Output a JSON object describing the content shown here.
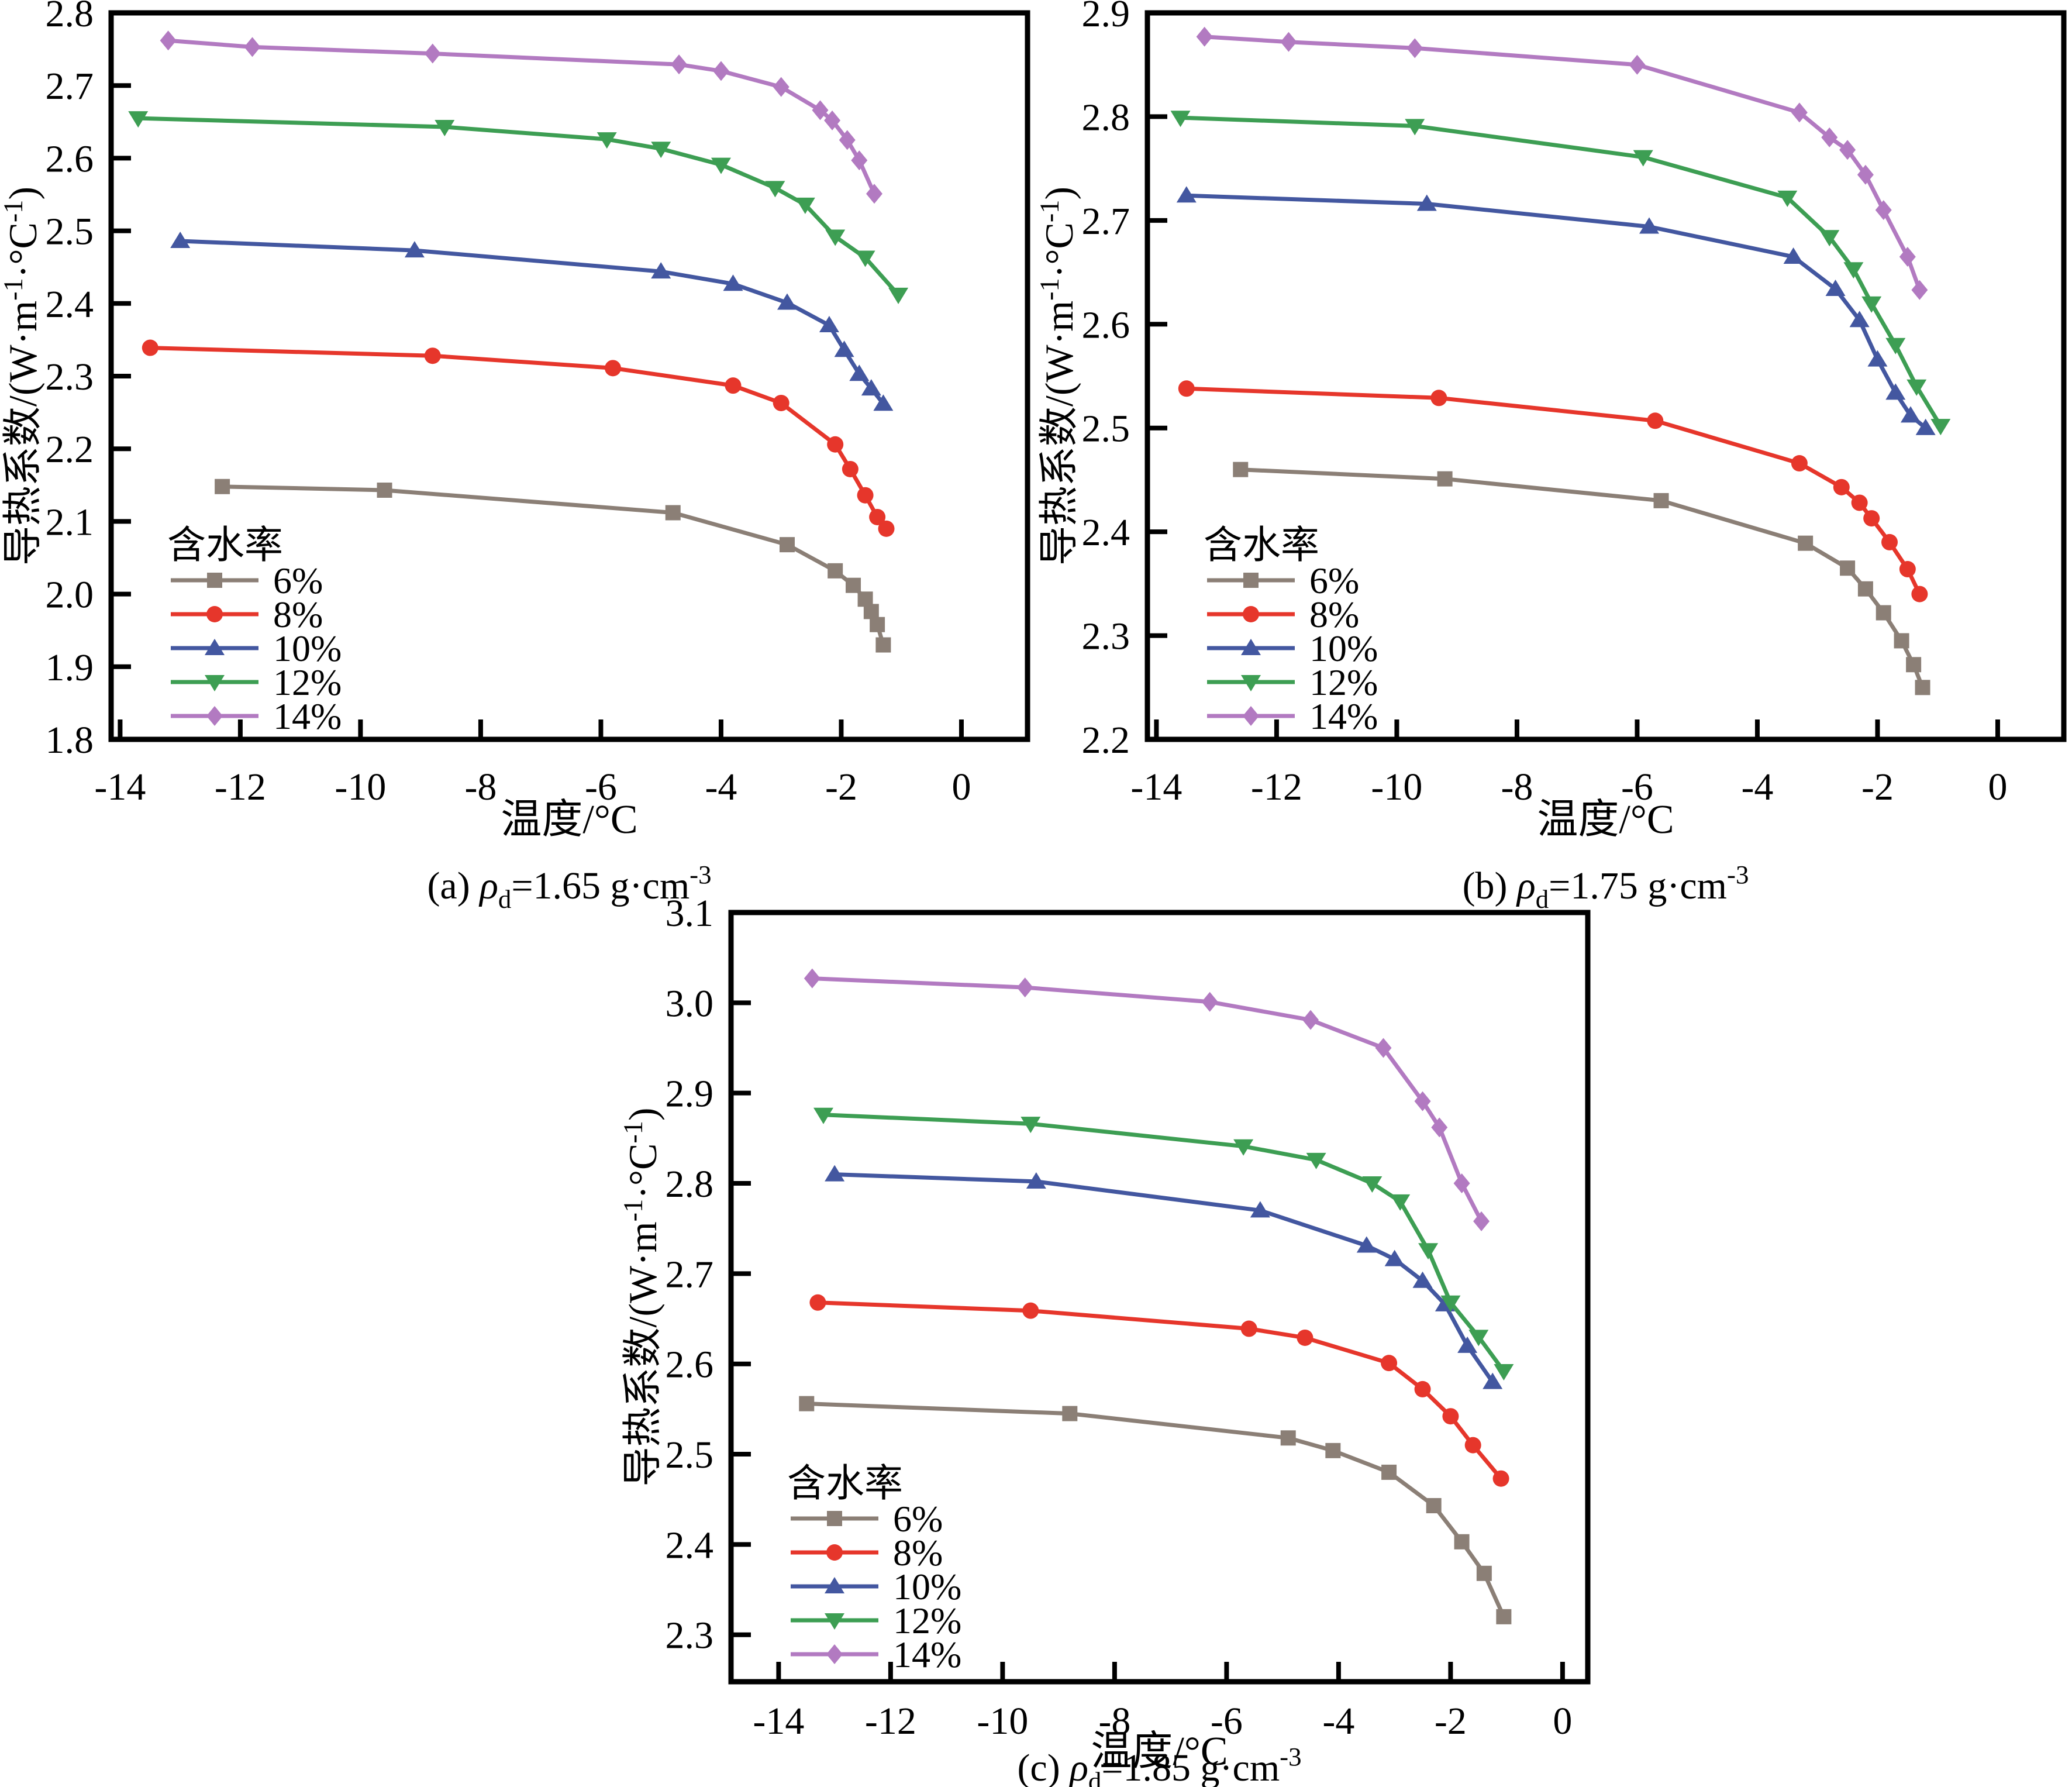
{
  "shared": {
    "xlabel": "温度/°C",
    "ylabel_plain": "导热系数/(W·m⁻¹·°C⁻¹)",
    "ylabel_parts": [
      {
        "t": "导热系数/(W·m"
      },
      {
        "t": "-1",
        "sup": true
      },
      {
        "t": "·°C"
      },
      {
        "t": "-1",
        "sup": true
      },
      {
        "t": ")"
      }
    ],
    "legend_title": "含水率",
    "axis_color": "#000000",
    "background": "#ffffff"
  },
  "chart_data": [
    {
      "id": "a",
      "type": "line",
      "caption_plain": "(a) ρd=1.65 g·cm⁻³",
      "caption": {
        "prefix": "(a) ",
        "symbol": "ρ",
        "sub": "d",
        "mid": "=1.65 g·cm",
        "sup": "-3"
      },
      "xlabel": "温度/°C",
      "ylabel": "导热系数/(W·m⁻¹·°C⁻¹)",
      "legend_title": "含水率",
      "xlim": [
        -14.15,
        1.1
      ],
      "ylim": [
        1.8,
        2.8
      ],
      "x_ticks": [
        -14,
        -12,
        -10,
        -8,
        -6,
        -4,
        -2,
        0
      ],
      "y_ticks": [
        "1.8",
        "1.9",
        "2.0",
        "2.1",
        "2.2",
        "2.3",
        "2.4",
        "2.5",
        "2.6",
        "2.7",
        "2.8"
      ],
      "grid": false,
      "legend_position": "lower-left",
      "series": [
        {
          "name": "6%",
          "color": "#8b7f76",
          "marker": "square",
          "points": [
            [
              -12.3,
              2.148
            ],
            [
              -9.6,
              2.143
            ],
            [
              -4.8,
              2.112
            ],
            [
              -2.9,
              2.068
            ],
            [
              -2.1,
              2.032
            ],
            [
              -1.8,
              2.012
            ],
            [
              -1.6,
              1.993
            ],
            [
              -1.5,
              1.976
            ],
            [
              -1.4,
              1.958
            ],
            [
              -1.3,
              1.93
            ]
          ]
        },
        {
          "name": "8%",
          "color": "#e6362b",
          "marker": "circle",
          "points": [
            [
              -13.5,
              2.339
            ],
            [
              -8.8,
              2.328
            ],
            [
              -5.8,
              2.311
            ],
            [
              -3.8,
              2.287
            ],
            [
              -3.0,
              2.263
            ],
            [
              -2.1,
              2.206
            ],
            [
              -1.85,
              2.172
            ],
            [
              -1.6,
              2.136
            ],
            [
              -1.4,
              2.106
            ],
            [
              -1.25,
              2.09
            ]
          ]
        },
        {
          "name": "10%",
          "color": "#4357a0",
          "marker": "triangle-up",
          "points": [
            [
              -13.0,
              2.486
            ],
            [
              -9.1,
              2.473
            ],
            [
              -5.0,
              2.444
            ],
            [
              -3.8,
              2.427
            ],
            [
              -2.9,
              2.401
            ],
            [
              -2.2,
              2.37
            ],
            [
              -1.95,
              2.336
            ],
            [
              -1.7,
              2.303
            ],
            [
              -1.5,
              2.283
            ],
            [
              -1.3,
              2.262
            ]
          ]
        },
        {
          "name": "12%",
          "color": "#3d9e53",
          "marker": "triangle-down",
          "points": [
            [
              -13.7,
              2.655
            ],
            [
              -8.6,
              2.643
            ],
            [
              -5.9,
              2.626
            ],
            [
              -5.0,
              2.613
            ],
            [
              -4.0,
              2.591
            ],
            [
              -3.1,
              2.559
            ],
            [
              -2.6,
              2.536
            ],
            [
              -2.1,
              2.492
            ],
            [
              -1.6,
              2.463
            ],
            [
              -1.05,
              2.412
            ]
          ]
        },
        {
          "name": "14%",
          "color": "#b27ac1",
          "marker": "diamond",
          "points": [
            [
              -13.2,
              2.762
            ],
            [
              -11.8,
              2.753
            ],
            [
              -8.8,
              2.744
            ],
            [
              -4.7,
              2.729
            ],
            [
              -4.0,
              2.72
            ],
            [
              -3.0,
              2.698
            ],
            [
              -2.35,
              2.666
            ],
            [
              -2.15,
              2.652
            ],
            [
              -1.9,
              2.625
            ],
            [
              -1.7,
              2.597
            ],
            [
              -1.45,
              2.551
            ]
          ]
        }
      ]
    },
    {
      "id": "b",
      "type": "line",
      "caption_plain": "(b) ρd=1.75 g·cm⁻³",
      "caption": {
        "prefix": "(b) ",
        "symbol": "ρ",
        "sub": "d",
        "mid": "=1.75 g·cm",
        "sup": "-3"
      },
      "xlabel": "温度/°C",
      "ylabel": "导热系数/(W·m⁻¹·°C⁻¹)",
      "legend_title": "含水率",
      "xlim": [
        -14.15,
        1.1
      ],
      "ylim": [
        2.2,
        2.9
      ],
      "x_ticks": [
        -14,
        -12,
        -10,
        -8,
        -6,
        -4,
        -2,
        0
      ],
      "y_ticks": [
        "2.2",
        "2.3",
        "2.4",
        "2.5",
        "2.6",
        "2.7",
        "2.8",
        "2.9"
      ],
      "grid": false,
      "legend_position": "lower-left",
      "series": [
        {
          "name": "6%",
          "color": "#8b7f76",
          "marker": "square",
          "points": [
            [
              -12.6,
              2.46
            ],
            [
              -9.2,
              2.451
            ],
            [
              -5.6,
              2.43
            ],
            [
              -3.2,
              2.389
            ],
            [
              -2.5,
              2.365
            ],
            [
              -2.2,
              2.345
            ],
            [
              -1.9,
              2.322
            ],
            [
              -1.6,
              2.295
            ],
            [
              -1.4,
              2.272
            ],
            [
              -1.25,
              2.25
            ]
          ]
        },
        {
          "name": "8%",
          "color": "#e6362b",
          "marker": "circle",
          "points": [
            [
              -13.5,
              2.538
            ],
            [
              -9.3,
              2.529
            ],
            [
              -5.7,
              2.507
            ],
            [
              -3.3,
              2.466
            ],
            [
              -2.6,
              2.443
            ],
            [
              -2.3,
              2.428
            ],
            [
              -2.1,
              2.413
            ],
            [
              -1.8,
              2.39
            ],
            [
              -1.5,
              2.364
            ],
            [
              -1.3,
              2.34
            ]
          ]
        },
        {
          "name": "10%",
          "color": "#4357a0",
          "marker": "triangle-up",
          "points": [
            [
              -13.5,
              2.724
            ],
            [
              -9.5,
              2.716
            ],
            [
              -5.8,
              2.694
            ],
            [
              -3.4,
              2.665
            ],
            [
              -2.7,
              2.634
            ],
            [
              -2.3,
              2.604
            ],
            [
              -2.0,
              2.566
            ],
            [
              -1.7,
              2.534
            ],
            [
              -1.45,
              2.512
            ],
            [
              -1.2,
              2.5
            ]
          ]
        },
        {
          "name": "12%",
          "color": "#3d9e53",
          "marker": "triangle-down",
          "points": [
            [
              -13.6,
              2.799
            ],
            [
              -9.7,
              2.791
            ],
            [
              -5.9,
              2.761
            ],
            [
              -3.5,
              2.722
            ],
            [
              -2.8,
              2.684
            ],
            [
              -2.4,
              2.653
            ],
            [
              -2.1,
              2.62
            ],
            [
              -1.7,
              2.58
            ],
            [
              -1.35,
              2.54
            ],
            [
              -0.95,
              2.502
            ]
          ]
        },
        {
          "name": "14%",
          "color": "#b27ac1",
          "marker": "diamond",
          "points": [
            [
              -13.2,
              2.877
            ],
            [
              -11.8,
              2.872
            ],
            [
              -9.7,
              2.866
            ],
            [
              -6.0,
              2.85
            ],
            [
              -3.3,
              2.804
            ],
            [
              -2.8,
              2.78
            ],
            [
              -2.5,
              2.768
            ],
            [
              -2.2,
              2.744
            ],
            [
              -1.9,
              2.71
            ],
            [
              -1.5,
              2.665
            ],
            [
              -1.3,
              2.633
            ]
          ]
        }
      ]
    },
    {
      "id": "c",
      "type": "line",
      "caption_plain": "(c) ρd=1.85 g·cm⁻³",
      "caption": {
        "prefix": "(c) ",
        "symbol": "ρ",
        "sub": "d",
        "mid": "=1.85 g·cm",
        "sup": "-3"
      },
      "xlabel": "温度/°C",
      "ylabel": "导热系数/(W·m⁻¹·°C⁻¹)",
      "legend_title": "含水率",
      "xlim": [
        -14.85,
        0.45
      ],
      "ylim": [
        2.248,
        3.1
      ],
      "x_ticks": [
        -14,
        -12,
        -10,
        -8,
        -6,
        -4,
        -2,
        0
      ],
      "y_ticks": [
        "2.3",
        "2.4",
        "2.5",
        "2.6",
        "2.7",
        "2.8",
        "2.9",
        "3.0",
        "3.1"
      ],
      "grid": false,
      "legend_position": "lower-left",
      "series": [
        {
          "name": "6%",
          "color": "#8b7f76",
          "marker": "square",
          "points": [
            [
              -13.5,
              2.556
            ],
            [
              -8.8,
              2.545
            ],
            [
              -4.9,
              2.518
            ],
            [
              -4.1,
              2.504
            ],
            [
              -3.1,
              2.48
            ],
            [
              -2.3,
              2.443
            ],
            [
              -1.8,
              2.403
            ],
            [
              -1.4,
              2.368
            ],
            [
              -1.05,
              2.32
            ]
          ]
        },
        {
          "name": "8%",
          "color": "#e6362b",
          "marker": "circle",
          "points": [
            [
              -13.3,
              2.668
            ],
            [
              -9.5,
              2.659
            ],
            [
              -5.6,
              2.639
            ],
            [
              -4.6,
              2.629
            ],
            [
              -3.1,
              2.601
            ],
            [
              -2.5,
              2.572
            ],
            [
              -2.0,
              2.542
            ],
            [
              -1.6,
              2.51
            ],
            [
              -1.1,
              2.473
            ]
          ]
        },
        {
          "name": "10%",
          "color": "#4357a0",
          "marker": "triangle-up",
          "points": [
            [
              -13.0,
              2.81
            ],
            [
              -9.4,
              2.802
            ],
            [
              -5.4,
              2.77
            ],
            [
              -3.5,
              2.731
            ],
            [
              -3.0,
              2.716
            ],
            [
              -2.5,
              2.692
            ],
            [
              -2.1,
              2.666
            ],
            [
              -1.7,
              2.62
            ],
            [
              -1.25,
              2.58
            ]
          ]
        },
        {
          "name": "12%",
          "color": "#3d9e53",
          "marker": "triangle-down",
          "points": [
            [
              -13.2,
              2.876
            ],
            [
              -9.5,
              2.866
            ],
            [
              -5.7,
              2.841
            ],
            [
              -4.4,
              2.826
            ],
            [
              -3.4,
              2.8
            ],
            [
              -2.9,
              2.78
            ],
            [
              -2.4,
              2.726
            ],
            [
              -2.0,
              2.668
            ],
            [
              -1.5,
              2.63
            ],
            [
              -1.05,
              2.592
            ]
          ]
        },
        {
          "name": "14%",
          "color": "#b27ac1",
          "marker": "diamond",
          "points": [
            [
              -13.4,
              3.027
            ],
            [
              -9.6,
              3.017
            ],
            [
              -6.3,
              3.001
            ],
            [
              -4.5,
              2.981
            ],
            [
              -3.2,
              2.95
            ],
            [
              -2.5,
              2.891
            ],
            [
              -2.2,
              2.862
            ],
            [
              -1.8,
              2.8
            ],
            [
              -1.45,
              2.758
            ]
          ]
        }
      ]
    }
  ]
}
